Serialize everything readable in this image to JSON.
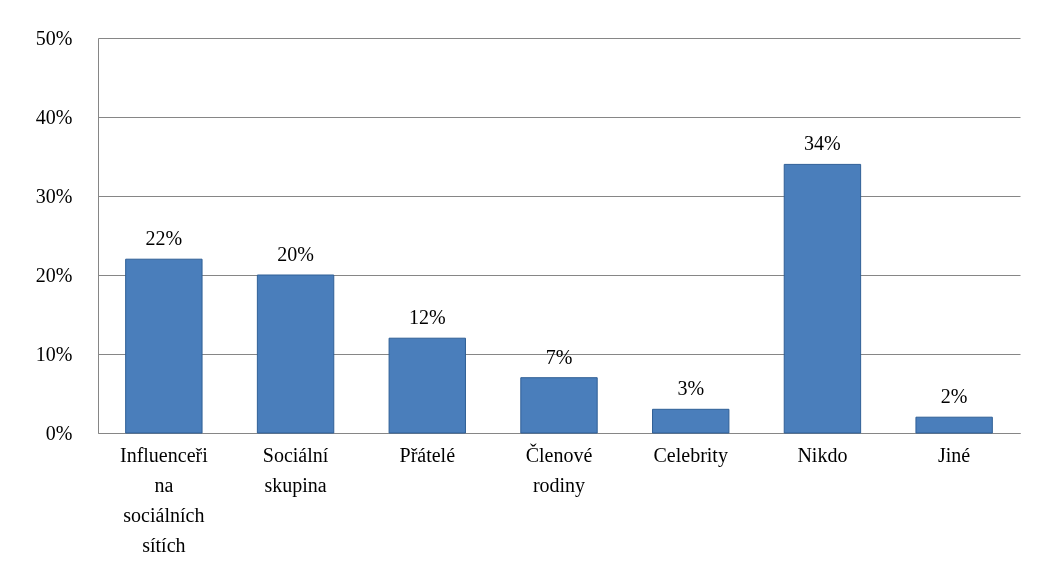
{
  "chart_data": {
    "type": "bar",
    "categories": [
      "Influenceři na sociálních sítích",
      "Sociální skupina",
      "Přátelé",
      "Členové rodiny",
      "Celebrity",
      "Nikdo",
      "Jiné"
    ],
    "values": [
      22,
      20,
      12,
      7,
      3,
      34,
      2
    ],
    "value_labels": [
      "22%",
      "20%",
      "12%",
      "7%",
      "3%",
      "34%",
      "2%"
    ],
    "color": "#4a7ebb",
    "ylim": [
      0,
      50
    ],
    "yticks": [
      {
        "value": 0,
        "label": "0%"
      },
      {
        "value": 10,
        "label": "10%"
      },
      {
        "value": 20,
        "label": "20%"
      },
      {
        "value": 30,
        "label": "30%"
      },
      {
        "value": 40,
        "label": "40%"
      },
      {
        "value": 50,
        "label": "50%"
      }
    ],
    "grid": "y"
  }
}
